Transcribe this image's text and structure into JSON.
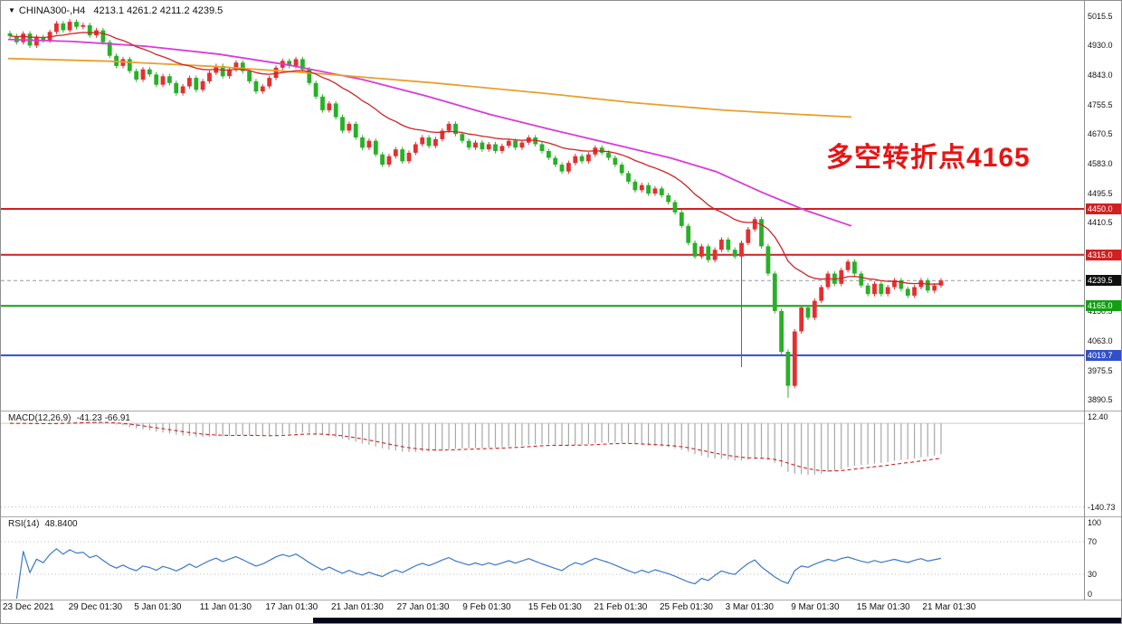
{
  "header": {
    "symbol": "CHINA300-,H4",
    "ohlc": "4213.1 4261.2 4211.2 4239.5"
  },
  "annotation": {
    "text": "多空转折点4165",
    "color": "#e81414"
  },
  "axis": {
    "price_labels": [
      {
        "text": "5015.5",
        "value": 5015.5
      },
      {
        "text": "4930.0",
        "value": 4930.0
      },
      {
        "text": "4843.0",
        "value": 4843.0
      },
      {
        "text": "4755.5",
        "value": 4755.5
      },
      {
        "text": "4670.5",
        "value": 4670.5
      },
      {
        "text": "4583.0",
        "value": 4583.0
      },
      {
        "text": "4495.5",
        "value": 4495.5
      },
      {
        "text": "4410.5",
        "value": 4410.5
      },
      {
        "text": "4150.5",
        "value": 4150.5
      },
      {
        "text": "4063.0",
        "value": 4063.0
      },
      {
        "text": "3975.5",
        "value": 3975.5
      },
      {
        "text": "3890.5",
        "value": 3890.5
      }
    ],
    "badges": [
      {
        "text": "4450.0",
        "value": 4450.0,
        "color": "#d02020"
      },
      {
        "text": "4315.0",
        "value": 4315.0,
        "color": "#d02020"
      },
      {
        "text": "4239.5",
        "value": 4239.5,
        "color": "#101010"
      },
      {
        "text": "4165.0",
        "value": 4165.0,
        "color": "#12a012"
      },
      {
        "text": "4019.7",
        "value": 4019.7,
        "color": "#3050c8"
      }
    ],
    "time_labels": [
      "23 Dec 2021",
      "29 Dec 01:30",
      "5 Jan 01:30",
      "11 Jan 01:30",
      "17 Jan 01:30",
      "21 Jan 01:30",
      "27 Jan 01:30",
      "9 Feb 01:30",
      "15 Feb 01:30",
      "21 Feb 01:30",
      "25 Feb 01:30",
      "3 Mar 01:30",
      "9 Mar 01:30",
      "15 Mar 01:30",
      "21 Mar 01:30"
    ]
  },
  "indicators": {
    "macd": {
      "label": "MACD(12,26,9)",
      "values": "-41.23 -66.91",
      "scale_labels": [
        {
          "text": "12.40",
          "value": 12.4,
          "grid": false
        },
        {
          "text": "-140.73",
          "value": -140.73,
          "grid": true
        }
      ]
    },
    "rsi": {
      "label": "RSI(14)",
      "value": "48.8400",
      "scale_labels": [
        {
          "text": "100",
          "value": 100,
          "grid": false
        },
        {
          "text": "70",
          "value": 70,
          "grid": true
        },
        {
          "text": "30",
          "value": 30,
          "grid": true
        },
        {
          "text": "0",
          "value": 0,
          "grid": false
        }
      ]
    }
  },
  "chart_data": {
    "type": "candlestick",
    "symbol": "CHINA300-",
    "timeframe": "H4",
    "title": "CHINA300-,H4",
    "ohlc_display": {
      "open": 4213.1,
      "high": 4261.2,
      "low": 4211.2,
      "close": 4239.5
    },
    "price_axis": {
      "min": 3860,
      "max": 5040
    },
    "up_color": "#e23030",
    "down_color": "#28b028",
    "closes": [
      4958,
      4940,
      4965,
      4930,
      4955,
      4945,
      4970,
      4995,
      4975,
      5000,
      4985,
      4990,
      4960,
      4975,
      4940,
      4900,
      4870,
      4890,
      4855,
      4830,
      4860,
      4845,
      4815,
      4840,
      4820,
      4790,
      4810,
      4835,
      4800,
      4825,
      4850,
      4870,
      4840,
      4860,
      4880,
      4855,
      4825,
      4795,
      4810,
      4835,
      4865,
      4885,
      4870,
      4890,
      4860,
      4820,
      4780,
      4740,
      4760,
      4720,
      4680,
      4700,
      4660,
      4630,
      4650,
      4610,
      4580,
      4605,
      4625,
      4590,
      4615,
      4640,
      4660,
      4635,
      4655,
      4680,
      4700,
      4670,
      4650,
      4630,
      4645,
      4625,
      4640,
      4620,
      4635,
      4650,
      4630,
      4645,
      4660,
      4640,
      4620,
      4600,
      4580,
      4560,
      4585,
      4605,
      4590,
      4610,
      4630,
      4615,
      4600,
      4580,
      4555,
      4530,
      4505,
      4520,
      4495,
      4510,
      4490,
      4470,
      4440,
      4400,
      4350,
      4310,
      4340,
      4300,
      4330,
      4360,
      4330,
      4310,
      4350,
      4390,
      4420,
      4340,
      4260,
      4150,
      4030,
      3930,
      4090,
      4160,
      4130,
      4180,
      4220,
      4260,
      4230,
      4270,
      4295,
      4260,
      4225,
      4200,
      4230,
      4200,
      4220,
      4240,
      4215,
      4195,
      4220,
      4240,
      4210,
      4225,
      4239.5
    ],
    "wick_high_overrides": {
      "9": 5008
    },
    "wick_low_overrides": {
      "110": 3985,
      "117": 3895
    },
    "levels": [
      {
        "price": 4450.0,
        "color": "#d02020"
      },
      {
        "price": 4315.0,
        "color": "#d02020"
      },
      {
        "price": 4165.0,
        "color": "#12a012"
      },
      {
        "price": 4019.7,
        "color": "#3050c8"
      }
    ],
    "current_price": {
      "value": 4239.5,
      "line_color": "#999999"
    },
    "ma_magenta": [
      [
        8,
        4948
      ],
      [
        80,
        4942
      ],
      [
        160,
        4928
      ],
      [
        240,
        4905
      ],
      [
        320,
        4872
      ],
      [
        400,
        4830
      ],
      [
        470,
        4782
      ],
      [
        540,
        4728
      ],
      [
        610,
        4682
      ],
      [
        680,
        4638
      ],
      [
        740,
        4600
      ],
      [
        790,
        4560
      ],
      [
        840,
        4500
      ],
      [
        890,
        4445
      ],
      [
        940,
        4400
      ]
    ],
    "ma_orange": [
      [
        8,
        4892
      ],
      [
        120,
        4884
      ],
      [
        240,
        4868
      ],
      [
        360,
        4846
      ],
      [
        480,
        4820
      ],
      [
        600,
        4790
      ],
      [
        700,
        4762
      ],
      [
        800,
        4740
      ],
      [
        880,
        4728
      ],
      [
        940,
        4720
      ]
    ],
    "ma_magenta_color": "#d83bd8",
    "ma_orange_color": "#e8a02e",
    "ma_red_color": "#cf2424",
    "macd_hist_color": "#a8a8a8",
    "macd_signal_color": "#cc2222",
    "rsi_color": "#3c78c8"
  }
}
